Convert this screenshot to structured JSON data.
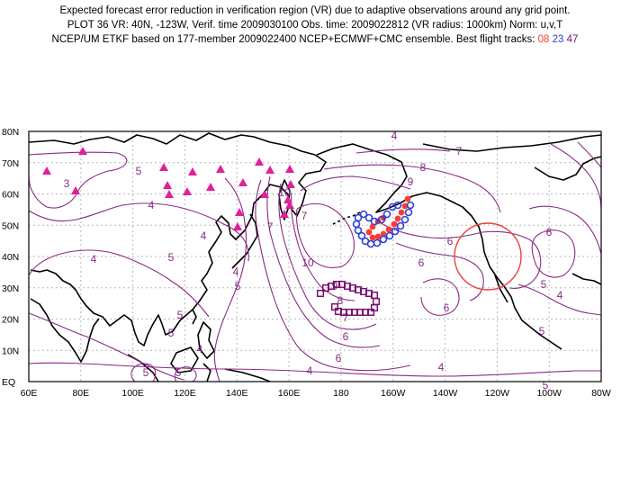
{
  "header": {
    "line1": "Expected forecast error reduction in verification region (VR) due to adaptive observations around any grid point.",
    "line2": "PLOT 36 VR: 40N, -123W, Verif. time 2009030100 Obs. time: 2009022812 (VR radius: 1000km) Norm: u,v,T",
    "line3_prefix": "NCEP/UM ETKF based on 177-member 2009022400 NCEP+ECMWF+CMC ensemble. Best flight tracks:",
    "track_a": "08",
    "track_b": "23",
    "track_c": "47"
  },
  "axes": {
    "lat_labels": [
      "80N",
      "70N",
      "60N",
      "50N",
      "40N",
      "30N",
      "20N",
      "10N",
      "EQ"
    ],
    "lon_labels": [
      "60E",
      "80E",
      "100E",
      "120E",
      "140E",
      "160E",
      "180",
      "160W",
      "140W",
      "120W",
      "100W",
      "80W"
    ]
  },
  "contour_labels": [
    "3",
    "4",
    "5",
    "4",
    "4",
    "4",
    "5",
    "5",
    "4",
    "5",
    "5",
    "5",
    "5",
    "4",
    "6",
    "6",
    "7",
    "8",
    "9",
    "10",
    "7",
    "7",
    "8",
    "9",
    "10",
    "7",
    "6",
    "5",
    "4",
    "6",
    "6",
    "6",
    "5",
    "4",
    "4",
    "5"
  ],
  "colors": {
    "contour": "#8a2a86",
    "grid": "#b8b8b8",
    "coast": "#000000",
    "triangle": "#e0209a",
    "track_08": "#ff3b2f",
    "track_23": "#2b40d8",
    "track_47": "#7a1070",
    "verification_circle": "#e8413a"
  },
  "verification_region": {
    "lat": 40,
    "lon": -123,
    "radius_km": 1000
  }
}
